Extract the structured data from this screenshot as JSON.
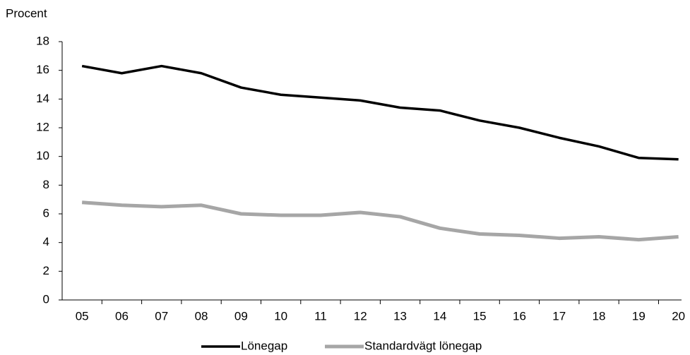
{
  "chart_data": {
    "type": "line",
    "y_label": "Procent",
    "categories": [
      "05",
      "06",
      "07",
      "08",
      "09",
      "10",
      "11",
      "12",
      "13",
      "14",
      "15",
      "16",
      "17",
      "18",
      "19",
      "20"
    ],
    "series": [
      {
        "name": "Lönegap",
        "color": "#000000",
        "values": [
          16.3,
          15.8,
          16.3,
          15.8,
          14.8,
          14.3,
          14.1,
          13.9,
          13.4,
          13.2,
          12.5,
          12.0,
          11.3,
          10.7,
          9.9,
          9.8
        ]
      },
      {
        "name": "Standardvägt lönegap",
        "color": "#a6a6a6",
        "values": [
          6.8,
          6.6,
          6.5,
          6.6,
          6.0,
          5.9,
          5.9,
          6.1,
          5.8,
          5.0,
          4.6,
          4.5,
          4.3,
          4.4,
          4.2,
          4.4
        ]
      }
    ],
    "ylim": [
      0,
      18
    ],
    "yticks": [
      0,
      2,
      4,
      6,
      8,
      10,
      12,
      14,
      16,
      18
    ],
    "grid": false
  }
}
